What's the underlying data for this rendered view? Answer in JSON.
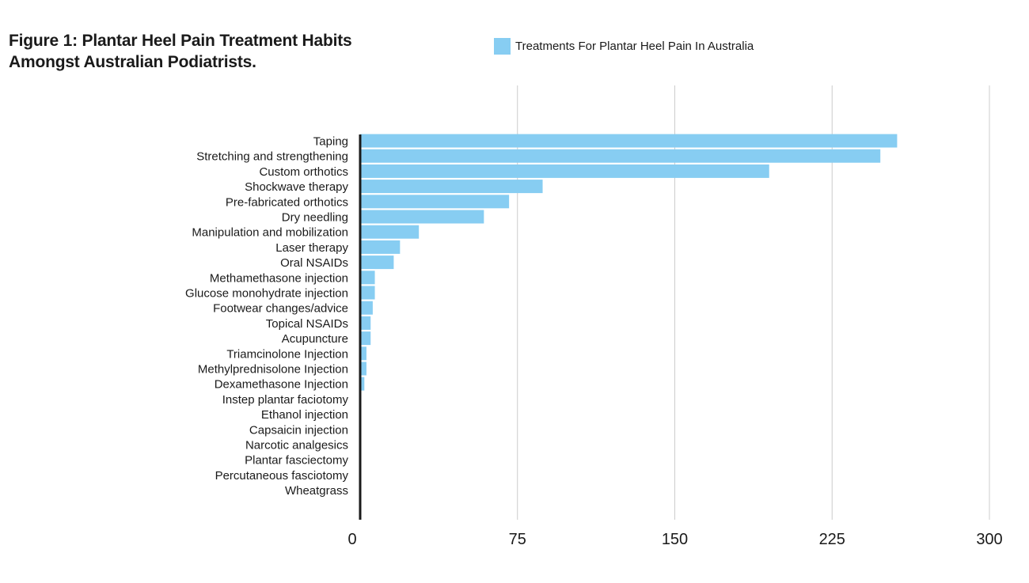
{
  "chart_data": {
    "type": "bar",
    "orientation": "horizontal",
    "title": "Figure 1: Plantar Heel Pain Treatment Habits Amongst Australian Podiatrists.",
    "legend": "Treatments For Plantar Heel Pain In Australia",
    "legend_position": "top",
    "color": "#87cdf2",
    "categories": [
      "Taping",
      "Stretching and strengthening",
      "Custom orthotics",
      "Shockwave therapy",
      "Pre-fabricated orthotics",
      "Dry needling",
      "Manipulation and mobilization",
      "Laser therapy",
      "Oral NSAIDs",
      "Methamethasone injection",
      "Glucose monohydrate injection",
      "Footwear changes/advice",
      "Topical NSAIDs",
      "Acupuncture",
      "Triamcinolone Injection",
      "Methylprednisolone Injection",
      "Dexamethasone Injection",
      "Instep plantar faciotomy",
      "Ethanol injection",
      "Capsaicin injection",
      "Narcotic analgesics",
      "Plantar fasciectomy",
      "Percutaneous fasciotomy",
      "Wheatgrass"
    ],
    "values": [
      256,
      248,
      195,
      87,
      71,
      59,
      28,
      19,
      16,
      7,
      7,
      6,
      5,
      5,
      3,
      3,
      2,
      0,
      0,
      0,
      0,
      0,
      0,
      0
    ],
    "xlim": [
      0,
      300
    ],
    "xticks": [
      0,
      75,
      150,
      225,
      300
    ],
    "xtick_labels": [
      "0",
      "75",
      "150",
      "225",
      "300"
    ],
    "grid": true
  }
}
